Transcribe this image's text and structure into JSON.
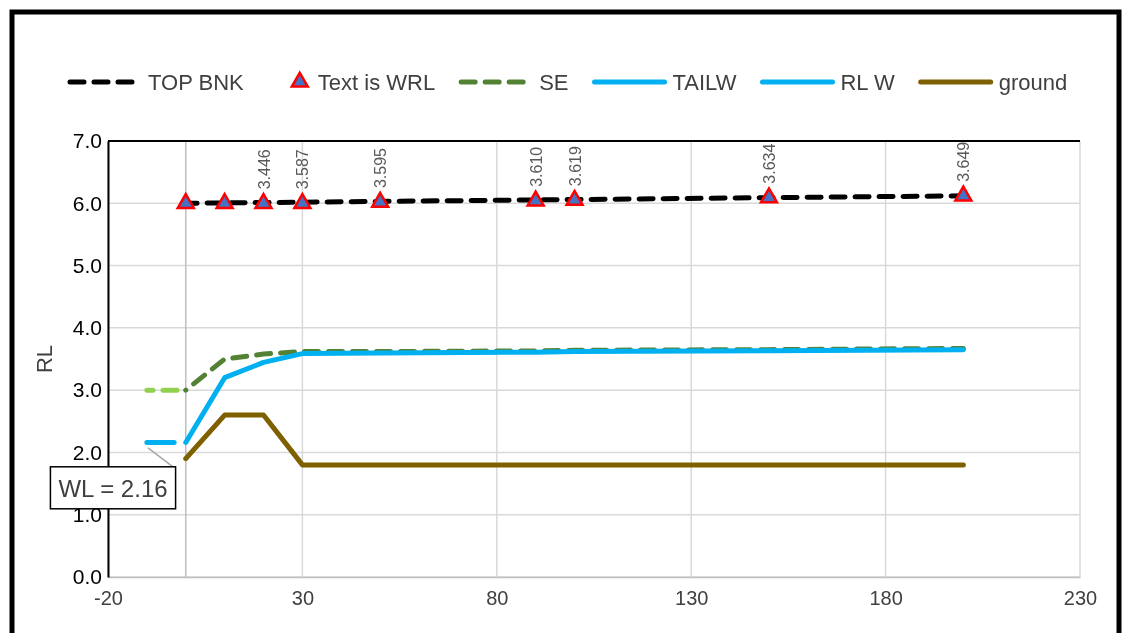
{
  "chart_data": {
    "type": "line",
    "ylabel": "RL",
    "xlim": [
      -20,
      230
    ],
    "xticks": [
      -20,
      30,
      80,
      130,
      180,
      230
    ],
    "ylim": [
      0,
      7
    ],
    "yticks": [
      {
        "value": 0,
        "label": "0.0"
      },
      {
        "value": 1,
        "label": "1.0"
      },
      {
        "value": 2,
        "label": "2.0"
      },
      {
        "value": 3,
        "label": "3.0"
      },
      {
        "value": 4,
        "label": "4.0"
      },
      {
        "value": 5,
        "label": "5.0"
      },
      {
        "value": 6,
        "label": "6.0"
      },
      {
        "value": 7,
        "label": "7.0"
      }
    ],
    "grid": true,
    "legend": "top",
    "annotations": [
      "WL = 2.16",
      {
        "text": "3.446",
        "x": 20,
        "y": 6.0
      },
      {
        "text": "3.587",
        "x": 30,
        "y": 6.0
      },
      {
        "text": "3.595",
        "x": 50,
        "y": 6.02
      },
      {
        "text": "3.610",
        "x": 90,
        "y": 6.04
      },
      {
        "text": "3.619",
        "x": 100,
        "y": 6.05
      },
      {
        "text": "3.634",
        "x": 150,
        "y": 6.09
      },
      {
        "text": "3.649",
        "x": 200,
        "y": 6.12
      }
    ],
    "series": [
      {
        "name": "TOP BNK",
        "line_style": "dashed",
        "marker": "none",
        "color": "#000000",
        "x": [
          0,
          200
        ],
        "values": [
          6.0,
          6.12
        ]
      },
      {
        "name": "Text is WRL",
        "type": "scatter",
        "marker": "triangle",
        "color": "#4472c4",
        "x": [
          0,
          10,
          20,
          30,
          50,
          90,
          100,
          150,
          200
        ],
        "values": [
          6.0,
          6.0,
          6.0,
          6.0,
          6.02,
          6.04,
          6.05,
          6.09,
          6.12
        ]
      },
      {
        "name": "SE",
        "line_style": "dashed",
        "marker": "none",
        "color": "#548235",
        "x": [
          0,
          10,
          20,
          30,
          50,
          90,
          100,
          150,
          200
        ],
        "values": [
          3.0,
          3.5,
          3.58,
          3.62,
          3.62,
          3.63,
          3.64,
          3.65,
          3.67
        ]
      },
      {
        "line_style": "dashed",
        "marker": "none",
        "color": "#92d050",
        "x": [
          -10,
          0
        ],
        "values": [
          3.0,
          3.0
        ]
      },
      {
        "name": "TAILW",
        "line_style": "solid",
        "marker": "none",
        "color": "#00b0f0",
        "x": [
          -10,
          -3
        ],
        "values": [
          2.16,
          2.16
        ]
      },
      {
        "name": "RL W",
        "line_style": "solid",
        "marker": "none",
        "color": "#00b0f0",
        "x": [
          0,
          10,
          20,
          30,
          50,
          90,
          100,
          150,
          200
        ],
        "values": [
          2.16,
          3.2,
          3.446,
          3.587,
          3.595,
          3.61,
          3.619,
          3.634,
          3.649
        ]
      },
      {
        "name": "ground",
        "line_style": "solid",
        "marker": "none",
        "color": "#7f6000",
        "x": [
          0,
          10,
          20,
          30,
          50,
          100,
          150,
          200
        ],
        "values": [
          1.9,
          2.6,
          2.6,
          1.8,
          1.8,
          1.8,
          1.8,
          1.8
        ]
      }
    ]
  }
}
